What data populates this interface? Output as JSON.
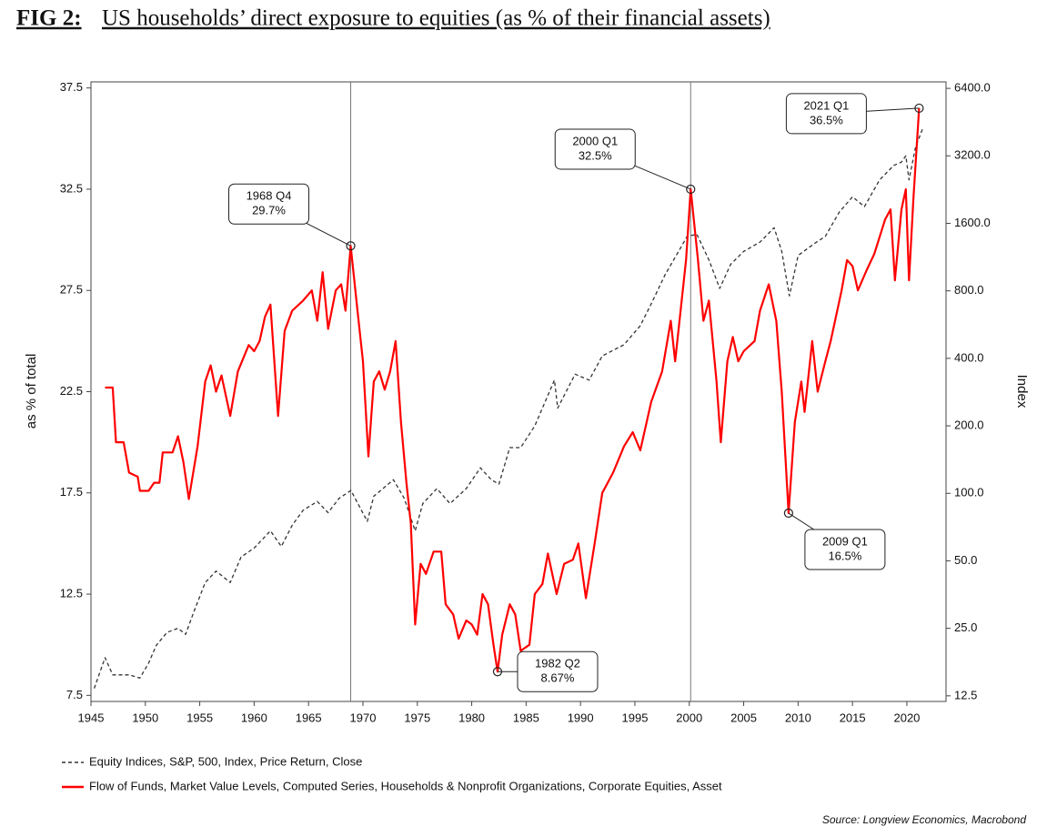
{
  "chart_data": {
    "type": "line",
    "figure_label": "FIG 2:",
    "title": "US households’ direct exposure to equities (as % of their financial assets)",
    "y_label": "as % of total",
    "y2_label": "Index",
    "source": "Source:  Longview Economics, Macrobond",
    "xlim": [
      1945,
      2023.6
    ],
    "xticks": [
      1945,
      1950,
      1955,
      1960,
      1965,
      1970,
      1975,
      1980,
      1985,
      1990,
      1995,
      2000,
      2005,
      2010,
      2015,
      2020
    ],
    "ylim": [
      7.2,
      37.8
    ],
    "yticks": [
      7.5,
      12.5,
      17.5,
      22.5,
      27.5,
      32.5,
      37.5
    ],
    "y2_log": true,
    "y2lim": [
      11.8,
      6840
    ],
    "y2ticks": [
      {
        "value": 12.5,
        "label": "12.5"
      },
      {
        "value": 25,
        "label": "25.0"
      },
      {
        "value": 50,
        "label": "50.0"
      },
      {
        "value": 100,
        "label": "100.0"
      },
      {
        "value": 200,
        "label": "200.0"
      },
      {
        "value": 400,
        "label": "400.0"
      },
      {
        "value": 800,
        "label": "800.0"
      },
      {
        "value": 1600,
        "label": "1600.0"
      },
      {
        "value": 3200,
        "label": "3200.0"
      },
      {
        "value": 6400,
        "label": "6400.0"
      }
    ],
    "vlines": [
      1968.875,
      2000.125
    ],
    "series": [
      {
        "name": "Equity Indices, S&P, 500, Index, Price Return, Close",
        "color": "#333333",
        "dashed": true,
        "axis": "y2",
        "x": [
          1945.3,
          1946.3,
          1947,
          1948.5,
          1949.5,
          1950.3,
          1951,
          1952,
          1953,
          1953.7,
          1954.5,
          1955.5,
          1956.5,
          1957.8,
          1958.8,
          1960,
          1961.5,
          1962.5,
          1963.5,
          1964.5,
          1965.8,
          1966.8,
          1967.8,
          1968.9,
          1970.4,
          1971,
          1972.8,
          1973.8,
          1974.8,
          1975.5,
          1976.8,
          1978,
          1979.5,
          1980.8,
          1981.8,
          1982.5,
          1983.5,
          1984.5,
          1985.8,
          1987.6,
          1987.9,
          1989.5,
          1990.8,
          1992,
          1994,
          1995.5,
          1996.5,
          1997.8,
          1998.8,
          1999.8,
          2000.7,
          2001.8,
          2002.8,
          2003.8,
          2005,
          2006.5,
          2007.8,
          2008.5,
          2009.2,
          2010,
          2011.5,
          2012.5,
          2013.8,
          2015,
          2016.1,
          2017.5,
          2018.8,
          2019.5,
          2019.9,
          2020.2,
          2020.8,
          2021.5
        ],
        "values": [
          13.5,
          18.5,
          15.5,
          15.5,
          15,
          17.5,
          21,
          24,
          25,
          23.5,
          30,
          40,
          45,
          40,
          52,
          57,
          68,
          58,
          72,
          84,
          92,
          82,
          95,
          103,
          75,
          97,
          115,
          95,
          68,
          90,
          105,
          90,
          105,
          130,
          115,
          110,
          160,
          160,
          200,
          320,
          240,
          340,
          320,
          410,
          460,
          560,
          700,
          950,
          1150,
          1400,
          1430,
          1100,
          820,
          1050,
          1200,
          1320,
          1530,
          1200,
          760,
          1150,
          1300,
          1400,
          1800,
          2100,
          1900,
          2500,
          2900,
          3000,
          3200,
          2500,
          3500,
          4300
        ]
      },
      {
        "name": "Flow of Funds, Market Value Levels, Computed Series, Households & Nonprofit Organizations, Corporate Equities, Asset",
        "color": "#ff0000",
        "dashed": false,
        "x": [
          1946.3,
          1947,
          1947.3,
          1948,
          1948.5,
          1949.3,
          1949.5,
          1950.3,
          1950.8,
          1951.3,
          1951.6,
          1952.5,
          1953,
          1953.5,
          1954,
          1954.8,
          1955.5,
          1956,
          1956.5,
          1957,
          1957.8,
          1958.5,
          1959.5,
          1960,
          1960.5,
          1961,
          1961.5,
          1962.2,
          1962.8,
          1963.5,
          1964.5,
          1965.3,
          1965.8,
          1966.3,
          1966.8,
          1967.5,
          1968,
          1968.4,
          1968.875,
          1969.5,
          1970,
          1970.5,
          1971,
          1971.5,
          1972,
          1972.5,
          1973,
          1973.5,
          1974,
          1974.4,
          1974.8,
          1975.3,
          1975.8,
          1976.5,
          1977.2,
          1977.6,
          1978.3,
          1978.8,
          1979.5,
          1980,
          1980.5,
          1981,
          1981.5,
          1982,
          1982.375,
          1982.8,
          1983.5,
          1984,
          1984.5,
          1985.3,
          1985.8,
          1986.5,
          1987,
          1987.8,
          1988.5,
          1989.3,
          1989.8,
          1990.5,
          1991.3,
          1992,
          1993,
          1994,
          1994.8,
          1995.5,
          1996.5,
          1997.5,
          1998.3,
          1998.7,
          1999.3,
          1999.7,
          2000.125,
          2000.8,
          2001.3,
          2001.8,
          2002.5,
          2002.9,
          2003.5,
          2004,
          2004.5,
          2005,
          2006,
          2006.5,
          2007.3,
          2008,
          2008.5,
          2009.125,
          2009.7,
          2010.3,
          2010.6,
          2011.3,
          2011.8,
          2012.5,
          2013,
          2014,
          2014.5,
          2015,
          2015.5,
          2016.3,
          2017,
          2018,
          2018.5,
          2018.9,
          2019.5,
          2019.9,
          2020.2,
          2020.6,
          2021.125
        ],
        "values": [
          22.7,
          22.7,
          20,
          20,
          18.5,
          18.3,
          17.6,
          17.6,
          18,
          18,
          19.5,
          19.5,
          20.3,
          19,
          17.2,
          19.8,
          23,
          23.8,
          22.5,
          23.3,
          21.3,
          23.5,
          24.8,
          24.5,
          25,
          26.2,
          26.8,
          21.3,
          25.5,
          26.5,
          27,
          27.5,
          26,
          28.4,
          25.6,
          27.5,
          27.8,
          26.5,
          29.7,
          26.5,
          24,
          19.3,
          23,
          23.5,
          22.6,
          23.5,
          25,
          21,
          18,
          16,
          11,
          14,
          13.5,
          14.6,
          14.6,
          12,
          11.5,
          10.3,
          11.2,
          11,
          10.5,
          12.5,
          12,
          10,
          8.67,
          10.5,
          12,
          11.5,
          9.7,
          10,
          12.5,
          13,
          14.5,
          12.5,
          14,
          14.2,
          15,
          12.3,
          15,
          17.5,
          18.5,
          19.8,
          20.5,
          19.6,
          22,
          23.5,
          26,
          24,
          27,
          29,
          32.5,
          29,
          26,
          27,
          23,
          20,
          24,
          25.2,
          24,
          24.5,
          25,
          26.5,
          27.8,
          26,
          22.5,
          16.5,
          21,
          23,
          21.5,
          25,
          22.5,
          24,
          25,
          27.5,
          29,
          28.7,
          27.5,
          28.5,
          29.3,
          31,
          31.5,
          28,
          31.5,
          32.5,
          28,
          32,
          36.5
        ]
      }
    ],
    "annotations": [
      {
        "x": 1968.875,
        "y": 29.7,
        "lines": [
          "1968 Q4",
          "29.7%"
        ]
      },
      {
        "x": 1982.375,
        "y": 8.67,
        "lines": [
          "1982 Q2",
          "8.67%"
        ]
      },
      {
        "x": 2000.125,
        "y": 32.5,
        "lines": [
          "2000 Q1",
          "32.5%"
        ]
      },
      {
        "x": 2009.125,
        "y": 16.5,
        "lines": [
          "2009 Q1",
          "16.5%"
        ]
      },
      {
        "x": 2021.125,
        "y": 36.5,
        "lines": [
          "2021 Q1",
          "36.5%"
        ]
      }
    ]
  }
}
